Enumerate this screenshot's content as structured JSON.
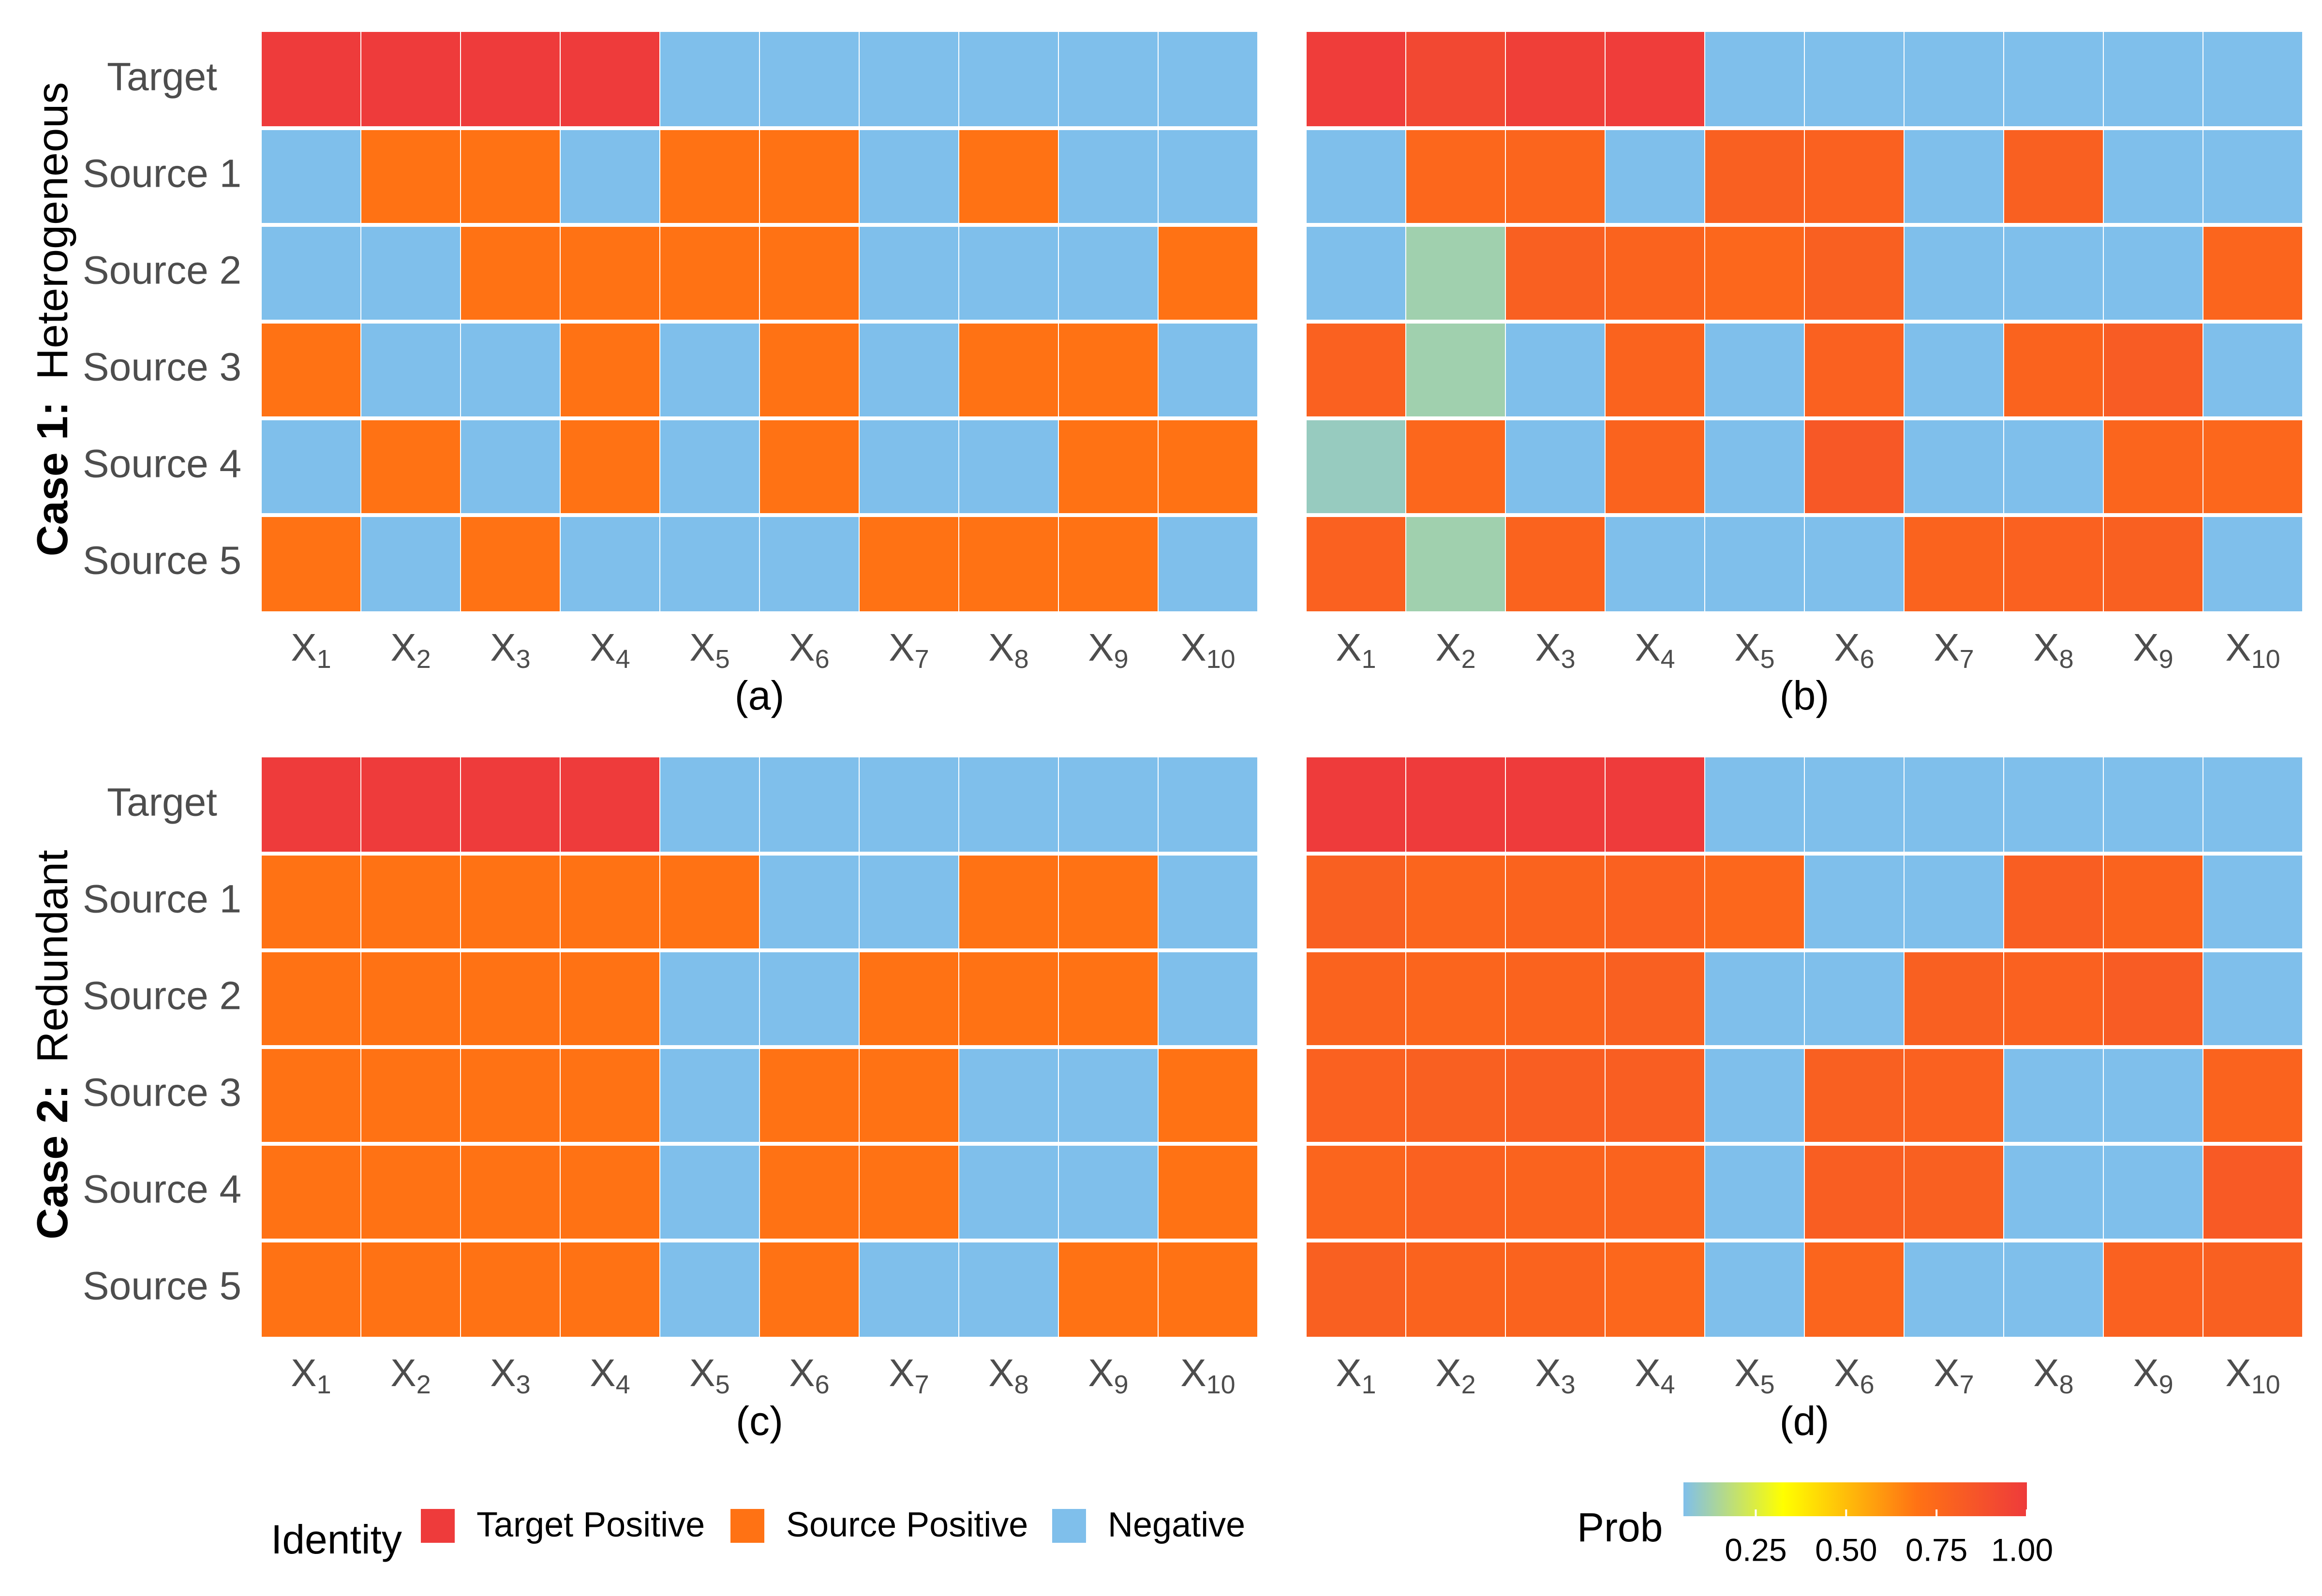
{
  "case_labels": [
    {
      "bold": "Case 1:",
      "rest": "Heterogeneous"
    },
    {
      "bold": "Case 2:",
      "rest": "Redundant"
    }
  ],
  "legend": {
    "title": "Identity",
    "items": [
      {
        "label": "Target Positive",
        "color": "#EE3B3B"
      },
      {
        "label": "Source Positive",
        "color": "#FF7214"
      },
      {
        "label": "Negative",
        "color": "#7FBFEB"
      }
    ]
  },
  "colorbar": {
    "title": "Prob",
    "ticks": [
      "0.25",
      "0.50",
      "0.75",
      "1.00"
    ],
    "tick_values": [
      0.25,
      0.5,
      0.75,
      1.0
    ],
    "range": [
      0.05,
      1.0
    ],
    "stops": [
      "#7FBFEB",
      "#FFFF00",
      "#FF7214",
      "#EE3B3B"
    ]
  },
  "chart_data": [
    {
      "type": "heatmap",
      "panel": "(a)",
      "kind": "identity",
      "rows": [
        "Target",
        "Source 1",
        "Source 2",
        "Source 3",
        "Source 4",
        "Source 5"
      ],
      "columns": [
        "1",
        "2",
        "3",
        "4",
        "5",
        "6",
        "7",
        "8",
        "9",
        "10"
      ],
      "column_prefix": "X",
      "values": [
        [
          "T",
          "T",
          "T",
          "T",
          "N",
          "N",
          "N",
          "N",
          "N",
          "N"
        ],
        [
          "N",
          "S",
          "S",
          "N",
          "S",
          "S",
          "N",
          "S",
          "N",
          "N"
        ],
        [
          "N",
          "N",
          "S",
          "S",
          "S",
          "S",
          "N",
          "N",
          "N",
          "S"
        ],
        [
          "S",
          "N",
          "N",
          "S",
          "N",
          "S",
          "N",
          "S",
          "S",
          "N"
        ],
        [
          "N",
          "S",
          "N",
          "S",
          "N",
          "S",
          "N",
          "N",
          "S",
          "S"
        ],
        [
          "S",
          "N",
          "S",
          "N",
          "N",
          "N",
          "S",
          "S",
          "S",
          "N"
        ]
      ]
    },
    {
      "type": "heatmap",
      "panel": "(b)",
      "kind": "probability",
      "rows": [
        "Target",
        "Source 1",
        "Source 2",
        "Source 3",
        "Source 4",
        "Source 5"
      ],
      "columns": [
        "1",
        "2",
        "3",
        "4",
        "5",
        "6",
        "7",
        "8",
        "9",
        "10"
      ],
      "column_prefix": "X",
      "values": [
        [
          0.99,
          0.93,
          0.98,
          0.99,
          0.05,
          0.05,
          0.05,
          0.05,
          0.05,
          0.05
        ],
        [
          0.05,
          0.76,
          0.77,
          0.05,
          0.8,
          0.79,
          0.05,
          0.8,
          0.05,
          0.05
        ],
        [
          0.05,
          0.12,
          0.8,
          0.78,
          0.76,
          0.8,
          0.05,
          0.05,
          0.05,
          0.77
        ],
        [
          0.79,
          0.12,
          0.05,
          0.78,
          0.05,
          0.79,
          0.05,
          0.78,
          0.82,
          0.05
        ],
        [
          0.1,
          0.76,
          0.05,
          0.78,
          0.05,
          0.84,
          0.05,
          0.05,
          0.77,
          0.76
        ],
        [
          0.79,
          0.12,
          0.78,
          0.05,
          0.05,
          0.05,
          0.78,
          0.79,
          0.8,
          0.05
        ]
      ]
    },
    {
      "type": "heatmap",
      "panel": "(c)",
      "kind": "identity",
      "rows": [
        "Target",
        "Source 1",
        "Source 2",
        "Source 3",
        "Source 4",
        "Source 5"
      ],
      "columns": [
        "1",
        "2",
        "3",
        "4",
        "5",
        "6",
        "7",
        "8",
        "9",
        "10"
      ],
      "column_prefix": "X",
      "values": [
        [
          "T",
          "T",
          "T",
          "T",
          "N",
          "N",
          "N",
          "N",
          "N",
          "N"
        ],
        [
          "S",
          "S",
          "S",
          "S",
          "S",
          "N",
          "N",
          "S",
          "S",
          "N"
        ],
        [
          "S",
          "S",
          "S",
          "S",
          "N",
          "N",
          "S",
          "S",
          "S",
          "N"
        ],
        [
          "S",
          "S",
          "S",
          "S",
          "N",
          "S",
          "S",
          "N",
          "N",
          "S"
        ],
        [
          "S",
          "S",
          "S",
          "S",
          "N",
          "S",
          "S",
          "N",
          "N",
          "S"
        ],
        [
          "S",
          "S",
          "S",
          "S",
          "N",
          "S",
          "N",
          "N",
          "S",
          "S"
        ]
      ]
    },
    {
      "type": "heatmap",
      "panel": "(d)",
      "kind": "probability",
      "rows": [
        "Target",
        "Source 1",
        "Source 2",
        "Source 3",
        "Source 4",
        "Source 5"
      ],
      "columns": [
        "1",
        "2",
        "3",
        "4",
        "5",
        "6",
        "7",
        "8",
        "9",
        "10"
      ],
      "column_prefix": "X",
      "values": [
        [
          1.0,
          1.0,
          1.0,
          1.0,
          0.05,
          0.05,
          0.05,
          0.05,
          0.05,
          0.05
        ],
        [
          0.8,
          0.77,
          0.78,
          0.79,
          0.76,
          0.05,
          0.05,
          0.81,
          0.78,
          0.05
        ],
        [
          0.78,
          0.77,
          0.78,
          0.8,
          0.05,
          0.05,
          0.8,
          0.79,
          0.82,
          0.05
        ],
        [
          0.79,
          0.8,
          0.81,
          0.81,
          0.05,
          0.8,
          0.79,
          0.05,
          0.05,
          0.78
        ],
        [
          0.77,
          0.79,
          0.78,
          0.78,
          0.05,
          0.81,
          0.8,
          0.05,
          0.05,
          0.83
        ],
        [
          0.8,
          0.78,
          0.78,
          0.76,
          0.05,
          0.77,
          0.05,
          0.05,
          0.79,
          0.8
        ]
      ]
    }
  ]
}
